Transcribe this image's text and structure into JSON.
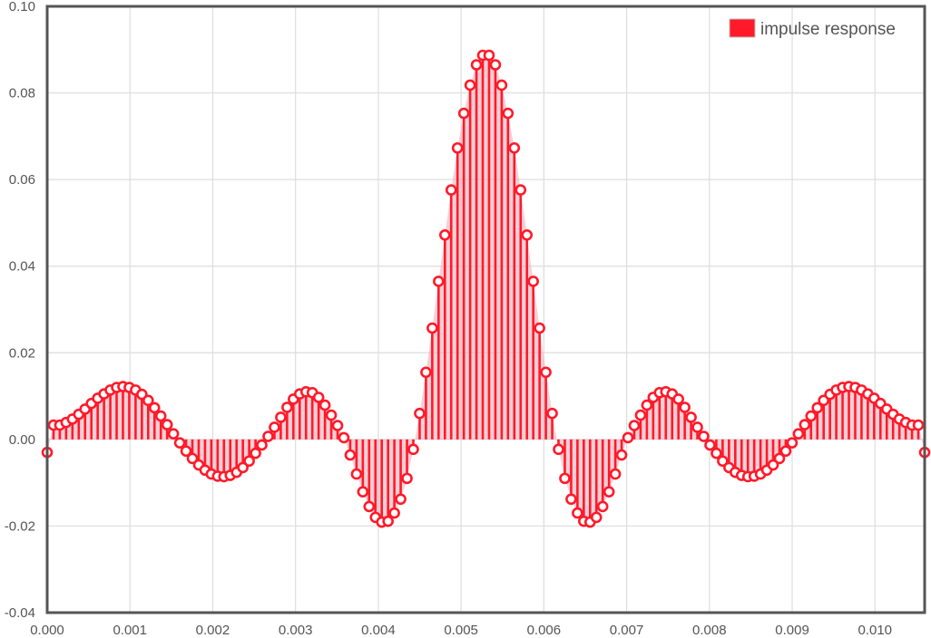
{
  "chart_data": {
    "type": "stem",
    "series": [
      {
        "name": "impulse response",
        "color": "#ff1a2a",
        "x_start": 0.0,
        "x_step": 8.08e-05,
        "values": [
          -0.003,
          0.0033,
          0.0033,
          0.0039,
          0.0047,
          0.0058,
          0.007,
          0.0083,
          0.0095,
          0.0105,
          0.0114,
          0.012,
          0.0122,
          0.012,
          0.0114,
          0.0104,
          0.009,
          0.0073,
          0.0054,
          0.0034,
          0.0013,
          -0.0008,
          -0.0027,
          -0.0044,
          -0.0059,
          -0.0071,
          -0.008,
          -0.0085,
          -0.0086,
          -0.0083,
          -0.0076,
          -0.0065,
          -0.005,
          -0.0032,
          -0.0013,
          0.0007,
          0.0028,
          0.0051,
          0.0074,
          0.0093,
          0.0105,
          0.011,
          0.0108,
          0.0097,
          0.0079,
          0.0056,
          0.0032,
          0.0004,
          -0.0036,
          -0.008,
          -0.0121,
          -0.0155,
          -0.018,
          -0.0191,
          -0.0189,
          -0.017,
          -0.0138,
          -0.009,
          -0.0023,
          0.006,
          0.0155,
          0.0257,
          0.0365,
          0.0472,
          0.0576,
          0.0673,
          0.0753,
          0.0818,
          0.0865,
          0.0887,
          0.0887,
          0.0865,
          0.0818,
          0.0753,
          0.0673,
          0.0576,
          0.0472,
          0.0365,
          0.0257,
          0.0155,
          0.006,
          -0.0023,
          -0.009,
          -0.0138,
          -0.017,
          -0.0189,
          -0.0191,
          -0.018,
          -0.0155,
          -0.0121,
          -0.008,
          -0.0036,
          0.0004,
          0.0032,
          0.0056,
          0.0079,
          0.0097,
          0.0108,
          0.011,
          0.0105,
          0.0093,
          0.0074,
          0.0051,
          0.0028,
          0.0007,
          -0.0013,
          -0.0032,
          -0.005,
          -0.0065,
          -0.0076,
          -0.0083,
          -0.0086,
          -0.0085,
          -0.008,
          -0.0071,
          -0.0059,
          -0.0044,
          -0.0027,
          -0.0008,
          0.0013,
          0.0034,
          0.0054,
          0.0073,
          0.009,
          0.0104,
          0.0114,
          0.012,
          0.0122,
          0.012,
          0.0114,
          0.0105,
          0.0095,
          0.0083,
          0.007,
          0.0058,
          0.0047,
          0.0039,
          0.0033,
          0.0033,
          -0.003
        ]
      }
    ],
    "xlim": [
      0.0,
      0.0106
    ],
    "ylim": [
      -0.04,
      0.1
    ],
    "xticks": [
      0.0,
      0.001,
      0.002,
      0.003,
      0.004,
      0.005,
      0.006,
      0.007,
      0.008,
      0.009,
      0.01
    ],
    "yticks": [
      -0.04,
      -0.02,
      0.0,
      0.02,
      0.04,
      0.06,
      0.08,
      0.1
    ],
    "xtick_labels": [
      "0.000",
      "0.001",
      "0.002",
      "0.003",
      "0.004",
      "0.005",
      "0.006",
      "0.007",
      "0.008",
      "0.009",
      "0.010"
    ],
    "ytick_labels": [
      "-0.04",
      "-0.02",
      "0.00",
      "0.02",
      "0.04",
      "0.06",
      "0.08",
      "0.10"
    ],
    "grid": true,
    "legend_position": "top-right",
    "legend_label": "impulse response",
    "colors": {
      "series": "#ff1a2a",
      "fill": "#f2a8b4",
      "grid": "#dddddd",
      "axis": "#555555",
      "tick_text": "#555555"
    }
  }
}
